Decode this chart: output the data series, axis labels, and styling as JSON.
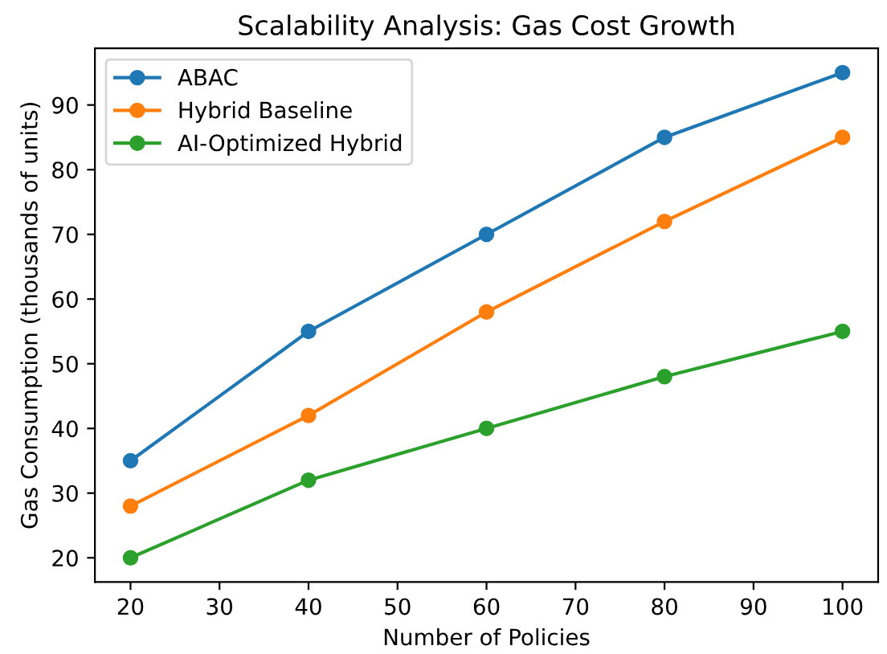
{
  "chart_data": {
    "type": "line",
    "title": "Scalability Analysis: Gas Cost Growth",
    "xlabel": "Number of Policies",
    "ylabel": "Gas Consumption (thousands of units)",
    "x": [
      20,
      40,
      60,
      80,
      100
    ],
    "series": [
      {
        "name": "ABAC",
        "color": "#1f77b4",
        "values": [
          35,
          55,
          70,
          85,
          95
        ]
      },
      {
        "name": "Hybrid Baseline",
        "color": "#ff7f0e",
        "values": [
          28,
          42,
          58,
          72,
          85
        ]
      },
      {
        "name": "AI-Optimized Hybrid",
        "color": "#2ca02c",
        "values": [
          20,
          32,
          40,
          48,
          55
        ]
      }
    ],
    "xlim": [
      16,
      104
    ],
    "ylim": [
      16.25,
      98.75
    ],
    "xticks": [
      20,
      30,
      40,
      50,
      60,
      70,
      80,
      90,
      100
    ],
    "yticks": [
      20,
      30,
      40,
      50,
      60,
      70,
      80,
      90
    ],
    "marker": "circle",
    "line_style": "solid",
    "legend": "top left",
    "grid": false
  }
}
